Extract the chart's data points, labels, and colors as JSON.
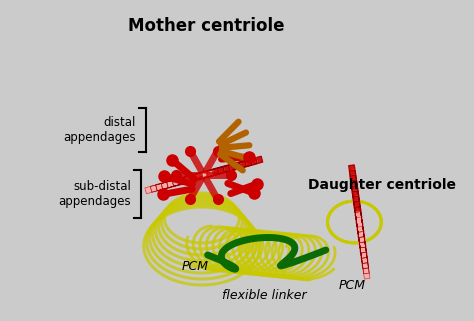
{
  "title": "Mother centriole",
  "title2": "Daughter centriole",
  "label_distal": "distal\nappendages",
  "label_subdistal": "sub-distal\nappendages",
  "label_pcm1": "PCM",
  "label_pcm2": "PCM",
  "label_flexible": "flexible linker",
  "bg_color": "#cbcbcb",
  "red": "#cc0000",
  "dark_red": "#8b0000",
  "light_red": "#ff6666",
  "pink": "#ffaaaa",
  "orange": "#b36200",
  "yellow": "#c8c800",
  "green": "#006600",
  "white": "#ffffff",
  "gray": "#aaaaaa"
}
